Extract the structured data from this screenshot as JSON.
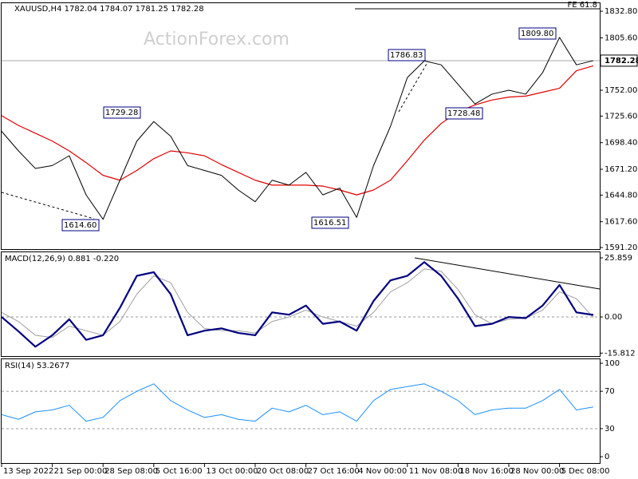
{
  "chart_data": [
    {
      "type": "line",
      "title": "XAUUSD,H4  1782.04 1784.07 1781.25 1782.28",
      "watermark": "ActionForex.com",
      "fe_label": "FE 61.8",
      "last_price": {
        "value": 1782.28,
        "label": "1782.28"
      },
      "annotations": [
        "1614.60",
        "1729.28",
        "1616.51",
        "1786.83",
        "1728.48",
        "1809.80"
      ],
      "ylim": [
        1589.6,
        1841
      ],
      "yticks": [
        {
          "value": 1832.8,
          "label": "1832.80"
        },
        {
          "value": 1805.6,
          "label": "1805.60"
        },
        {
          "value": 1752,
          "label": "1752.00"
        },
        {
          "value": 1725.6,
          "label": "1725.60"
        },
        {
          "value": 1698.4,
          "label": "1698.40"
        },
        {
          "value": 1671.2,
          "label": "1671.20"
        },
        {
          "value": 1644.8,
          "label": "1644.80"
        },
        {
          "value": 1617.6,
          "label": "1617.60"
        },
        {
          "value": 1591.2,
          "label": "1591.20"
        }
      ],
      "series": [
        {
          "color": "#000000",
          "values": [
            1710,
            1690,
            1672,
            1675,
            1685,
            1645,
            1620,
            1660,
            1700,
            1720,
            1705,
            1675,
            1670,
            1665,
            1650,
            1638,
            1660,
            1655,
            1668,
            1645,
            1652,
            1622,
            1675,
            1715,
            1765,
            1782,
            1778,
            1758,
            1738,
            1748,
            1752,
            1748,
            1770,
            1806,
            1778,
            1782.28
          ]
        },
        {
          "color": "#e00000",
          "values": [
            1726,
            1716,
            1708,
            1700,
            1690,
            1678,
            1665,
            1660,
            1670,
            1682,
            1690,
            1688,
            1685,
            1676,
            1668,
            1660,
            1655,
            1655,
            1655,
            1654,
            1650,
            1645,
            1650,
            1660,
            1680,
            1701,
            1718,
            1730,
            1737,
            1742,
            1745,
            1746,
            1750,
            1754,
            1772,
            1777
          ]
        }
      ]
    },
    {
      "type": "line",
      "title": "MACD(12,26,9) 0.881 -0.220",
      "ylim": [
        -17.1,
        28.3
      ],
      "yticks": [
        25.859,
        {
          "value": 0,
          "label": "0.00"
        },
        -15.812
      ],
      "levels": [
        0
      ],
      "series": [
        {
          "color": "#000080",
          "values": [
            0,
            -6.3,
            -13,
            -8,
            -1,
            -10,
            -8,
            4,
            18,
            19.6,
            10,
            -8,
            -6,
            -5,
            -7,
            -8,
            2,
            1,
            5,
            -3,
            -2,
            -6,
            7,
            16,
            18,
            24,
            18,
            8,
            -4,
            -3,
            0,
            -0.5,
            5,
            14,
            2,
            0.881
          ]
        },
        {
          "color": "#a0a0a0",
          "values": [
            2,
            -2,
            -8,
            -9,
            -4,
            -6,
            -8,
            -2,
            10,
            18,
            15,
            2,
            -5,
            -6,
            -6,
            -7,
            -2,
            0,
            3,
            0,
            -2,
            -4,
            2,
            11,
            15,
            21,
            20,
            12,
            1,
            -3,
            -1,
            -0.5,
            3,
            11,
            8,
            -0.22
          ]
        }
      ]
    },
    {
      "type": "line",
      "title": "RSI(14) 53.2677",
      "ylim": [
        -6.8,
        104.3
      ],
      "yticks": [
        100,
        70,
        30,
        0
      ],
      "levels": [
        70,
        30
      ],
      "categories": [
        "13 Sep 2022",
        null,
        null,
        "21 Sep 00:00",
        null,
        null,
        "28 Sep 08:00",
        null,
        null,
        "5 Oct 16:00",
        null,
        null,
        "13 Oct 00:00",
        null,
        null,
        "20 Oct 08:00",
        null,
        null,
        "27 Oct 16:00",
        null,
        null,
        "4 Nov 00:00",
        null,
        null,
        "11 Nov 08:00",
        null,
        null,
        "18 Nov 16:00",
        null,
        null,
        "28 Nov 00:00",
        null,
        null,
        "5 Dec 08:00",
        null,
        null
      ],
      "series": [
        {
          "color": "#1e90ff",
          "values": [
            45,
            40,
            48,
            50,
            55,
            38,
            42,
            60,
            70,
            78,
            60,
            50,
            42,
            45,
            40,
            38,
            52,
            48,
            55,
            45,
            48,
            38,
            60,
            72,
            75,
            78,
            70,
            60,
            45,
            50,
            52,
            52,
            60,
            72,
            50,
            53.2677
          ]
        }
      ]
    }
  ]
}
